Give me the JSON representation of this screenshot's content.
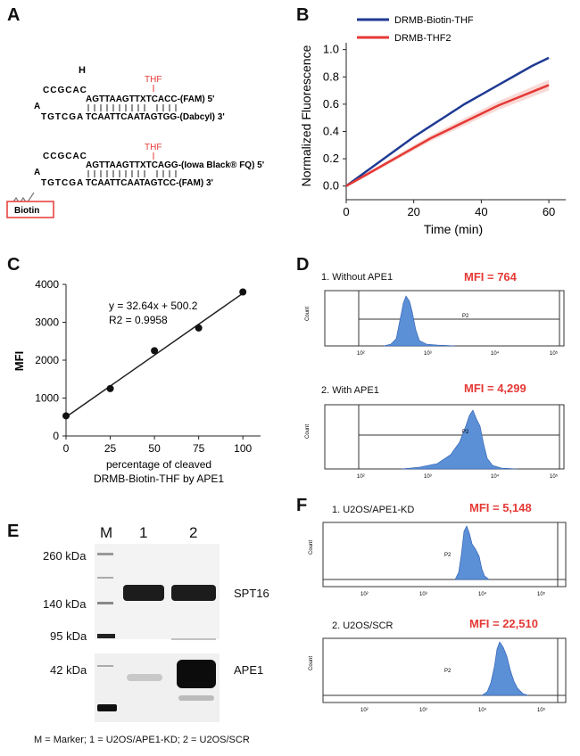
{
  "colors": {
    "blue": "#1f3a93",
    "red": "#e53935",
    "histo": "#5b8fd6",
    "gray": "#444444"
  },
  "panelA": {
    "label": "A",
    "h": "H",
    "thf1": "THF",
    "thf2": "THF",
    "loop1": "CCGCAC",
    "loop1b": "A",
    "loop1c": "TGTCGA",
    "top1": "AGTTAAGTTXTCACC-(FAM) 5'",
    "bot1": "TCAATTCAATAGTGG-(Dabcyl) 3'",
    "top2": "AGTTAAGTTXTCAGG-(Iowa Black® FQ) 5'",
    "bot2": "TCAATTCAATAGTCC-(FAM)        3'",
    "biotin": "Biotin"
  },
  "panelB": {
    "label": "B",
    "legend1": "DRMB-Biotin-THF",
    "legend2": "DRMB-THF2",
    "ylabel": "Normalized Fluorescence",
    "xlabel": "Time (min)"
  },
  "chart_data": [
    {
      "type": "line",
      "panel": "B",
      "xlabel": "Time (min)",
      "ylabel": "Normalized Fluorescence",
      "xlim": [
        0,
        65
      ],
      "ylim": [
        -0.1,
        1.05
      ],
      "xticks": [
        0,
        20,
        40,
        60
      ],
      "yticks": [
        0.0,
        0.2,
        0.4,
        0.6,
        0.8,
        1.0
      ],
      "series": [
        {
          "name": "DRMB-Biotin-THF",
          "color": "#1f3a93",
          "x": [
            0,
            5,
            10,
            15,
            20,
            25,
            30,
            35,
            40,
            45,
            50,
            55,
            60
          ],
          "y": [
            0.0,
            0.09,
            0.18,
            0.27,
            0.36,
            0.44,
            0.52,
            0.6,
            0.67,
            0.74,
            0.81,
            0.88,
            0.94
          ]
        },
        {
          "name": "DRMB-THF2",
          "color": "#e53935",
          "x": [
            0,
            5,
            10,
            15,
            20,
            25,
            30,
            35,
            40,
            45,
            50,
            55,
            60
          ],
          "y": [
            0.0,
            0.07,
            0.14,
            0.21,
            0.28,
            0.35,
            0.41,
            0.47,
            0.53,
            0.59,
            0.64,
            0.69,
            0.74
          ]
        }
      ]
    },
    {
      "type": "scatter",
      "panel": "C",
      "xlabel": "percentage of cleaved DRMB-Biotin-THF by APE1",
      "ylabel": "MFI",
      "xlim": [
        0,
        110
      ],
      "ylim": [
        0,
        4000
      ],
      "xticks": [
        0,
        25,
        50,
        75,
        100
      ],
      "yticks": [
        0,
        1000,
        2000,
        3000,
        4000
      ],
      "x": [
        0,
        25,
        50,
        75,
        100
      ],
      "y": [
        530,
        1250,
        2250,
        2850,
        3800
      ],
      "fit": {
        "slope": 32.64,
        "intercept": 500.2
      }
    }
  ],
  "panelC": {
    "label": "C",
    "eq": "y = 32.64x + 500.2",
    "r2": "R2 = 0.9958",
    "ylabel": "MFI",
    "xlabel1": "percentage of cleaved",
    "xlabel2": "DRMB-Biotin-THF by APE1"
  },
  "panelD": {
    "label": "D",
    "title1": "1. Without APE1",
    "mfi1": "MFI = 764",
    "title2": "2. With APE1",
    "mfi2": "MFI = 4,299",
    "gate": "P2",
    "count": "Count"
  },
  "panelE": {
    "label": "E",
    "m": "M",
    "lane1": "1",
    "lane2": "2",
    "kda260": "260 kDa",
    "kda140": "140 kDa",
    "kda95": "95 kDa",
    "kda42": "42 kDa",
    "spt16": "SPT16",
    "ape1": "APE1",
    "caption": "M = Marker; 1 = U2OS/APE1-KD; 2 = U2OS/SCR"
  },
  "panelF": {
    "label": "F",
    "title1": "1. U2OS/APE1-KD",
    "mfi1": "MFI = 5,148",
    "title2": "2. U2OS/SCR",
    "mfi2": "MFI = 22,510",
    "gate": "P2",
    "count": "Count"
  }
}
